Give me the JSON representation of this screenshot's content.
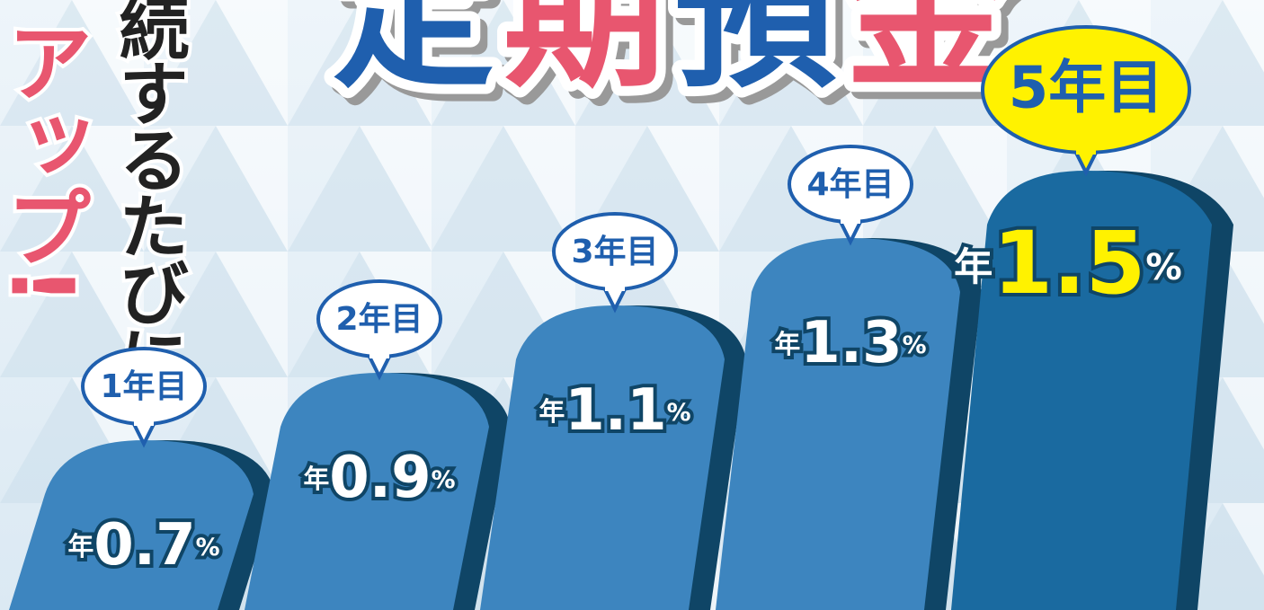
{
  "chart_data": {
    "type": "bar",
    "title_parts": [
      {
        "text": "定",
        "color": "#1f5fae"
      },
      {
        "text": "期",
        "color": "#e8566f"
      },
      {
        "text": "預",
        "color": "#1f5fae"
      },
      {
        "text": "金",
        "color": "#e8566f"
      }
    ],
    "side_text_pink": "アップ!",
    "side_text_black": "続するたびに",
    "categories": [
      "1年目",
      "2年目",
      "3年目",
      "4年目",
      "5年目"
    ],
    "values": [
      0.7,
      0.9,
      1.1,
      1.3,
      1.5
    ],
    "value_prefix": "年",
    "value_unit": "%",
    "color": "#3d85bf",
    "highlight_color": "#1a6aa0",
    "highlight_label_color": "#fff200"
  }
}
